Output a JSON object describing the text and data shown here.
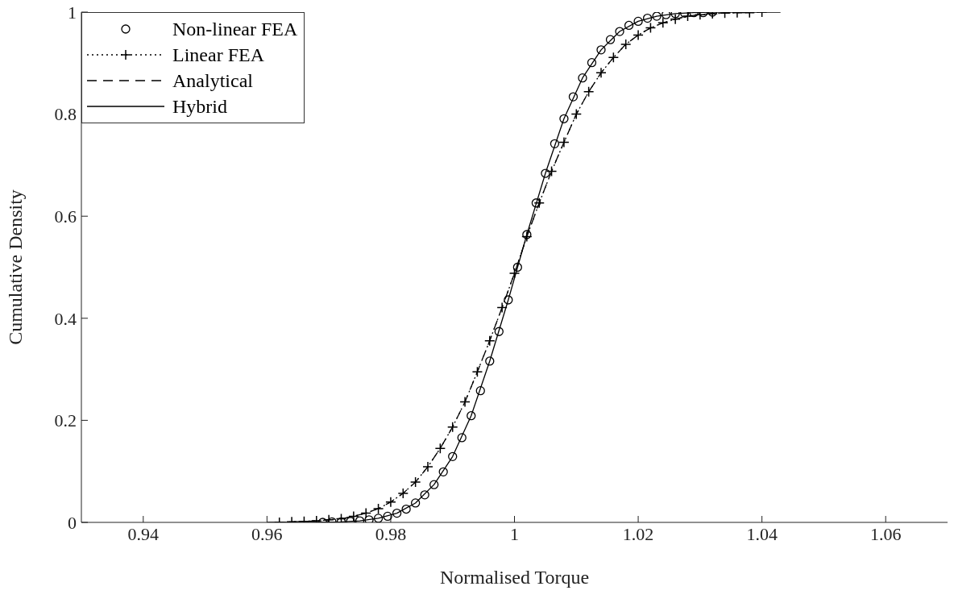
{
  "chart_data": {
    "type": "line",
    "xlabel": "Normalised Torque",
    "ylabel": "Cumulative Density",
    "xlim": [
      0.93,
      1.07
    ],
    "xticks": [
      0.94,
      0.96,
      0.98,
      1,
      1.02,
      1.04,
      1.06
    ],
    "ylim": [
      0,
      1
    ],
    "yticks": [
      0,
      0.2,
      0.4,
      0.6,
      0.8,
      1
    ],
    "grid": false,
    "legend": "top left",
    "series": [
      {
        "name": "Non-linear FEA",
        "type": "scatter",
        "color": "#000000",
        "marker": "circle",
        "x": [
          0.969,
          0.9705,
          0.972,
          0.9735,
          0.975,
          0.9765,
          0.978,
          0.9795,
          0.981,
          0.9825,
          0.984,
          0.9855,
          0.987,
          0.9885,
          0.99,
          0.9915,
          0.993,
          0.9945,
          0.996,
          0.9975,
          0.999,
          1.0005,
          1.002,
          1.0035,
          1.005,
          1.0065,
          1.008,
          1.0095,
          1.011,
          1.0125,
          1.014,
          1.0155,
          1.017,
          1.0185,
          1.02,
          1.0215,
          1.023,
          1.0245,
          1.026,
          1.0275,
          1.029,
          1.0305,
          1.032
        ],
        "values": [
          0,
          0.001,
          0.001,
          0.002,
          0.003,
          0.005,
          0.008,
          0.012,
          0.018,
          0.026,
          0.038,
          0.054,
          0.074,
          0.099,
          0.129,
          0.166,
          0.209,
          0.258,
          0.316,
          0.374,
          0.436,
          0.5,
          0.564,
          0.626,
          0.684,
          0.742,
          0.791,
          0.834,
          0.871,
          0.901,
          0.926,
          0.946,
          0.962,
          0.974,
          0.982,
          0.988,
          0.992,
          0.995,
          0.997,
          0.998,
          0.999,
          0.999,
          1
        ]
      },
      {
        "name": "Linear FEA",
        "color": "#000000",
        "marker": "cross",
        "line_style": "dotted",
        "x": [
          0.962,
          0.964,
          0.966,
          0.968,
          0.97,
          0.972,
          0.974,
          0.976,
          0.978,
          0.98,
          0.982,
          0.984,
          0.986,
          0.988,
          0.99,
          0.992,
          0.994,
          0.996,
          0.998,
          1,
          1.002,
          1.004,
          1.006,
          1.008,
          1.01,
          1.012,
          1.014,
          1.016,
          1.018,
          1.02,
          1.022,
          1.024,
          1.026,
          1.028,
          1.03,
          1.032,
          1.034,
          1.036,
          1.038,
          1.04
        ],
        "values": [
          0,
          0.001,
          0.002,
          0.003,
          0.005,
          0.007,
          0.012,
          0.018,
          0.027,
          0.04,
          0.057,
          0.079,
          0.109,
          0.145,
          0.187,
          0.236,
          0.295,
          0.356,
          0.421,
          0.488,
          0.56,
          0.626,
          0.688,
          0.745,
          0.8,
          0.844,
          0.881,
          0.911,
          0.937,
          0.955,
          0.969,
          0.979,
          0.986,
          0.992,
          0.995,
          0.997,
          0.998,
          0.999,
          0.999,
          1
        ]
      },
      {
        "name": "Analytical",
        "color": "#000000",
        "marker": "none",
        "line_style": "dashed",
        "x": [
          0.964,
          0.966,
          0.968,
          0.97,
          0.972,
          0.974,
          0.976,
          0.978,
          0.98,
          0.982,
          0.984,
          0.986,
          0.988,
          0.99,
          0.992,
          0.994,
          0.996,
          0.998,
          1,
          1.002,
          1.004,
          1.006,
          1.008,
          1.01,
          1.012,
          1.014,
          1.016,
          1.018,
          1.02,
          1.022,
          1.024,
          1.026,
          1.028,
          1.03,
          1.032,
          1.034,
          1.036,
          1.038
        ],
        "values": [
          0.001,
          0.002,
          0.003,
          0.005,
          0.007,
          0.012,
          0.018,
          0.027,
          0.04,
          0.057,
          0.079,
          0.109,
          0.145,
          0.187,
          0.236,
          0.295,
          0.356,
          0.421,
          0.488,
          0.56,
          0.626,
          0.688,
          0.745,
          0.8,
          0.844,
          0.881,
          0.911,
          0.937,
          0.955,
          0.969,
          0.979,
          0.986,
          0.992,
          0.995,
          0.997,
          0.998,
          0.999,
          0.999
        ]
      },
      {
        "name": "Hybrid",
        "color": "#000000",
        "marker": "none",
        "line_style": "solid",
        "x": [
          0.96,
          0.966,
          0.972,
          0.975,
          0.978,
          0.981,
          0.984,
          0.987,
          0.99,
          0.993,
          0.996,
          0.999,
          1.0005,
          1.002,
          1.005,
          1.008,
          1.011,
          1.014,
          1.017,
          1.02,
          1.023,
          1.026,
          1.029,
          1.032,
          1.036,
          1.043
        ],
        "values": [
          0,
          0,
          0.001,
          0.003,
          0.008,
          0.018,
          0.038,
          0.074,
          0.129,
          0.209,
          0.316,
          0.436,
          0.5,
          0.564,
          0.684,
          0.791,
          0.871,
          0.926,
          0.962,
          0.982,
          0.992,
          0.997,
          0.999,
          1,
          1,
          1
        ]
      }
    ]
  }
}
